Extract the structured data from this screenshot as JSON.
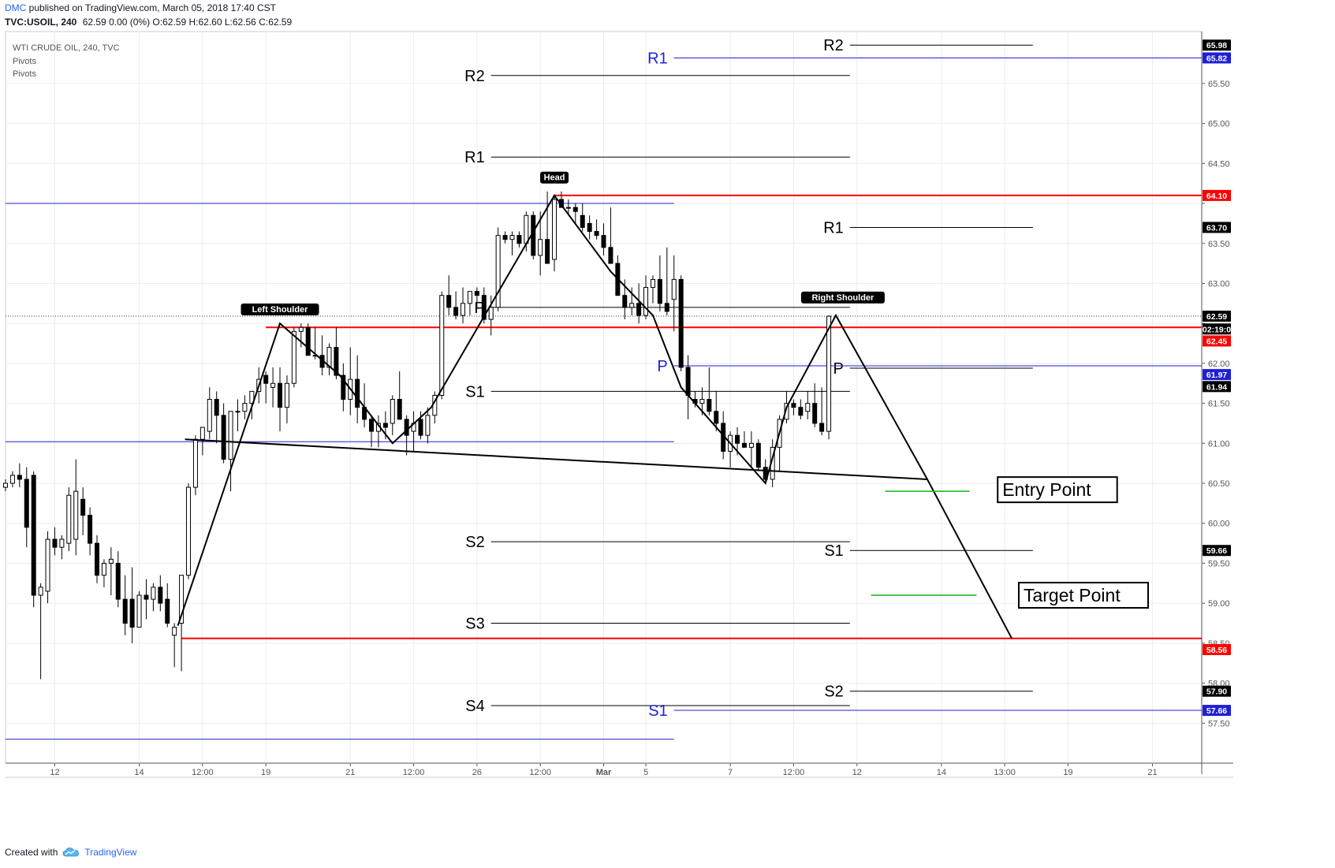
{
  "header": {
    "author": "DMC",
    "published": "published on TradingView.com, March 05, 2018 17:40 CST",
    "symbol_line": "TVC:USOIL, 240",
    "ohlc_line": "62.59 0.00 (0%) O:62.59 H:62.60 L:62.56 C:62.59"
  },
  "footer": {
    "created_with": "Created with",
    "brand": "TradingView",
    "brand_icon": "tradingview-cloud-logo"
  },
  "colors": {
    "grid": "#e9eef3",
    "candle_up": "#ffffff",
    "candle_down": "#000000",
    "pivot_black": "#000000",
    "pivot_blue": "#1f1fd6",
    "level_red": "#ff0000",
    "entry_green": "#17b217",
    "badge_bg": "#000000"
  },
  "chart_data": {
    "type": "candlestick",
    "title": "WTI CRUDE OIL, 240, TVC",
    "indicators": [
      "Pivots",
      "Pivots"
    ],
    "ylim": [
      57.0,
      66.15
    ],
    "y_ticks": [
      57.5,
      58.0,
      58.5,
      59.0,
      59.5,
      60.0,
      60.5,
      61.0,
      61.5,
      62.0,
      62.5,
      63.0,
      63.5,
      64.0,
      64.5,
      65.0,
      65.5
    ],
    "y_tick_labels": [
      "57.50",
      "58.00",
      "58.50",
      "59.00",
      "59.50",
      "60.00",
      "60.50",
      "61.00",
      "61.50",
      "62.00",
      "",
      "63.00",
      "63.50",
      "",
      "64.50",
      "65.00",
      "65.50"
    ],
    "x_axis": {
      "labels": [
        "12",
        "14",
        "12:00",
        "19",
        "21",
        "12:00",
        "26",
        "12:00",
        "Mar",
        "5",
        "7",
        "12:00",
        "12",
        "14",
        "13:00",
        "19",
        "21"
      ],
      "label_positions": [
        0,
        12,
        21,
        30,
        42,
        51,
        60,
        69,
        78,
        84,
        96,
        105,
        114,
        126,
        135,
        144,
        156
      ],
      "bold_labels": [
        "Mar"
      ]
    },
    "x_bar_range": [
      -7,
      163
    ],
    "candles": [
      [
        -7,
        60.45,
        60.55,
        60.4,
        60.5
      ],
      [
        -6,
        60.5,
        60.65,
        60.45,
        60.6
      ],
      [
        -5,
        60.6,
        60.75,
        60.45,
        60.55
      ],
      [
        -4,
        60.55,
        60.7,
        59.7,
        59.95
      ],
      [
        -3,
        60.6,
        60.65,
        58.95,
        59.1
      ],
      [
        -2,
        59.1,
        59.25,
        58.05,
        59.2
      ],
      [
        -1,
        59.15,
        59.9,
        59.0,
        59.8
      ],
      [
        0,
        59.8,
        59.95,
        59.6,
        59.7
      ],
      [
        1,
        59.7,
        59.85,
        59.55,
        59.8
      ],
      [
        2,
        59.75,
        60.45,
        59.65,
        60.35
      ],
      [
        3,
        59.8,
        60.8,
        59.6,
        60.4
      ],
      [
        4,
        60.3,
        60.45,
        59.85,
        60.1
      ],
      [
        5,
        60.1,
        60.2,
        59.6,
        59.75
      ],
      [
        6,
        59.75,
        59.85,
        59.25,
        59.35
      ],
      [
        7,
        59.35,
        59.55,
        59.2,
        59.5
      ],
      [
        8,
        59.5,
        59.7,
        59.1,
        59.55
      ],
      [
        9,
        59.5,
        59.65,
        58.95,
        59.05
      ],
      [
        10,
        59.05,
        59.35,
        58.6,
        58.75
      ],
      [
        11,
        59.05,
        59.45,
        58.5,
        58.7
      ],
      [
        12,
        58.7,
        59.15,
        58.7,
        59.1
      ],
      [
        13,
        59.1,
        59.3,
        58.8,
        59.05
      ],
      [
        14,
        59.05,
        59.25,
        58.9,
        59.2
      ],
      [
        15,
        59.2,
        59.35,
        58.9,
        59.0
      ],
      [
        16,
        59.05,
        59.25,
        58.7,
        58.75
      ],
      [
        17,
        58.6,
        58.75,
        58.2,
        58.7
      ],
      [
        18,
        58.75,
        59.35,
        58.15,
        59.35
      ],
      [
        19,
        59.35,
        60.5,
        59.3,
        60.45
      ],
      [
        20,
        60.45,
        61.1,
        60.35,
        61.05
      ],
      [
        21,
        61.05,
        61.2,
        60.85,
        61.2
      ],
      [
        22,
        61.15,
        61.7,
        61.05,
        61.55
      ],
      [
        23,
        61.55,
        61.65,
        61.0,
        61.35
      ],
      [
        24,
        61.35,
        61.5,
        60.75,
        60.8
      ],
      [
        25,
        60.8,
        61.35,
        60.4,
        61.4
      ],
      [
        26,
        61.4,
        61.55,
        61.15,
        61.4
      ],
      [
        27,
        61.4,
        61.6,
        61.3,
        61.5
      ],
      [
        28,
        61.5,
        61.65,
        61.3,
        61.65
      ],
      [
        29,
        61.65,
        61.95,
        61.5,
        61.8
      ],
      [
        30,
        61.85,
        61.9,
        61.5,
        61.75
      ],
      [
        31,
        61.7,
        61.95,
        61.45,
        61.75
      ],
      [
        32,
        61.75,
        61.95,
        61.15,
        61.45
      ],
      [
        33,
        61.45,
        61.85,
        61.25,
        61.75
      ],
      [
        34,
        61.75,
        62.45,
        61.7,
        62.4
      ],
      [
        35,
        62.4,
        62.5,
        62.2,
        62.45
      ],
      [
        36,
        62.45,
        62.5,
        62.1,
        62.1
      ],
      [
        37,
        62.1,
        62.45,
        62.05,
        62.1
      ],
      [
        38,
        62.1,
        62.35,
        61.85,
        61.95
      ],
      [
        39,
        61.95,
        62.25,
        61.85,
        62.2
      ],
      [
        40,
        62.2,
        62.45,
        61.8,
        61.85
      ],
      [
        41,
        61.85,
        62.0,
        61.4,
        61.55
      ],
      [
        42,
        61.55,
        62.2,
        61.35,
        61.8
      ],
      [
        43,
        61.8,
        62.1,
        61.25,
        61.45
      ],
      [
        44,
        61.45,
        61.75,
        61.2,
        61.3
      ],
      [
        45,
        61.3,
        61.35,
        60.95,
        61.15
      ],
      [
        46,
        61.15,
        61.35,
        60.95,
        61.25
      ],
      [
        47,
        61.25,
        61.4,
        61.05,
        61.2
      ],
      [
        48,
        61.25,
        61.6,
        61.1,
        61.55
      ],
      [
        49,
        61.55,
        61.9,
        61.3,
        61.3
      ],
      [
        50,
        61.3,
        61.35,
        60.85,
        61.1
      ],
      [
        51,
        61.15,
        61.4,
        60.9,
        61.25
      ],
      [
        52,
        61.3,
        61.4,
        61.05,
        61.1
      ],
      [
        53,
        61.1,
        61.45,
        61.0,
        61.35
      ],
      [
        54,
        61.35,
        61.65,
        61.25,
        61.6
      ],
      [
        55,
        61.6,
        62.9,
        61.55,
        62.85
      ],
      [
        56,
        62.85,
        63.1,
        62.6,
        62.7
      ],
      [
        57,
        62.7,
        62.9,
        62.55,
        62.6
      ],
      [
        58,
        62.6,
        62.95,
        62.5,
        62.75
      ],
      [
        59,
        62.75,
        62.9,
        62.6,
        62.9
      ],
      [
        60,
        62.9,
        62.95,
        62.7,
        62.85
      ],
      [
        61,
        62.85,
        62.95,
        62.5,
        62.55
      ],
      [
        62,
        62.55,
        62.85,
        62.35,
        62.7
      ],
      [
        63,
        62.7,
        63.7,
        62.65,
        63.6
      ],
      [
        64,
        63.6,
        63.65,
        63.5,
        63.55
      ],
      [
        65,
        63.55,
        63.65,
        63.35,
        63.6
      ],
      [
        66,
        63.6,
        63.65,
        63.45,
        63.5
      ],
      [
        67,
        63.5,
        63.9,
        63.4,
        63.85
      ],
      [
        68,
        63.85,
        63.9,
        63.3,
        63.35
      ],
      [
        69,
        63.35,
        63.9,
        63.1,
        63.55
      ],
      [
        70,
        63.55,
        64.15,
        63.25,
        63.25
      ],
      [
        71,
        63.3,
        64.1,
        63.15,
        64.05
      ],
      [
        72,
        64.05,
        64.15,
        63.95,
        63.95
      ],
      [
        73,
        63.95,
        64.05,
        63.85,
        63.95
      ],
      [
        74,
        63.95,
        64.0,
        63.75,
        63.9
      ],
      [
        75,
        63.85,
        64.0,
        63.65,
        63.7
      ],
      [
        76,
        63.75,
        63.85,
        63.55,
        63.65
      ],
      [
        77,
        63.65,
        63.8,
        63.55,
        63.6
      ],
      [
        78,
        63.6,
        63.75,
        63.35,
        63.45
      ],
      [
        79,
        63.45,
        63.95,
        63.25,
        63.25
      ],
      [
        80,
        63.25,
        63.35,
        62.85,
        62.85
      ],
      [
        81,
        62.85,
        63.05,
        62.55,
        62.7
      ],
      [
        82,
        62.7,
        62.95,
        62.6,
        62.75
      ],
      [
        83,
        62.75,
        63.0,
        62.5,
        62.6
      ],
      [
        84,
        62.6,
        63.1,
        62.55,
        62.95
      ],
      [
        85,
        62.95,
        63.1,
        62.75,
        63.05
      ],
      [
        86,
        63.05,
        63.35,
        62.65,
        62.75
      ],
      [
        87,
        62.75,
        63.45,
        62.6,
        62.65
      ],
      [
        88,
        62.8,
        63.35,
        62.4,
        63.05
      ],
      [
        89,
        63.05,
        63.1,
        61.9,
        61.95
      ],
      [
        90,
        61.95,
        62.1,
        61.3,
        61.6
      ],
      [
        91,
        61.55,
        61.65,
        61.45,
        61.5
      ],
      [
        92,
        61.5,
        61.7,
        61.35,
        61.55
      ],
      [
        93,
        61.55,
        61.95,
        61.35,
        61.4
      ],
      [
        94,
        61.4,
        61.65,
        61.15,
        61.25
      ],
      [
        95,
        61.25,
        61.4,
        60.8,
        60.9
      ],
      [
        96,
        60.9,
        61.15,
        60.7,
        61.1
      ],
      [
        97,
        61.1,
        61.2,
        60.85,
        61.0
      ],
      [
        98,
        61.0,
        61.15,
        60.95,
        60.95
      ],
      [
        99,
        60.95,
        61.15,
        60.7,
        61.0
      ],
      [
        100,
        61.0,
        61.05,
        60.65,
        60.7
      ],
      [
        101,
        60.7,
        60.8,
        60.5,
        60.55
      ],
      [
        102,
        60.55,
        61.05,
        60.45,
        60.95
      ],
      [
        103,
        60.95,
        61.35,
        60.65,
        61.3
      ],
      [
        104,
        61.3,
        61.65,
        61.25,
        61.5
      ],
      [
        105,
        61.5,
        61.55,
        61.35,
        61.45
      ],
      [
        106,
        61.45,
        61.55,
        61.3,
        61.35
      ],
      [
        107,
        61.4,
        61.65,
        61.3,
        61.5
      ],
      [
        108,
        61.5,
        61.75,
        61.2,
        61.25
      ],
      [
        109,
        61.25,
        61.7,
        61.1,
        61.15
      ],
      [
        110,
        61.15,
        62.6,
        61.05,
        62.59
      ]
    ],
    "drawn_levels": [
      {
        "name": "head-level",
        "color": "red",
        "price": 64.1,
        "x_range": [
          71,
          163
        ]
      },
      {
        "name": "shoulder-level",
        "color": "red",
        "price": 62.45,
        "x_range": [
          30,
          163
        ]
      },
      {
        "name": "target-level",
        "color": "red",
        "price": 58.56,
        "x_range": [
          18,
          163
        ]
      }
    ],
    "neckline": {
      "from": [
        18.5,
        61.05
      ],
      "to": [
        124,
        60.55
      ]
    },
    "pattern_path": [
      [
        17.5,
        58.72
      ],
      [
        32,
        62.5
      ],
      [
        40.5,
        61.85
      ],
      [
        48,
        61.0
      ],
      [
        53.5,
        61.45
      ],
      [
        71,
        64.1
      ],
      [
        79,
        63.15
      ],
      [
        85,
        62.6
      ],
      [
        89,
        61.7
      ],
      [
        101,
        60.5
      ],
      [
        104,
        61.45
      ],
      [
        111,
        62.6
      ],
      [
        124,
        60.55
      ],
      [
        136,
        58.56
      ]
    ],
    "pivots_weekly": {
      "color": "black",
      "x_range": [
        62,
        113
      ],
      "levels": [
        {
          "label": "R2",
          "price": 65.6
        },
        {
          "label": "R1",
          "price": 64.58
        },
        {
          "label": "P",
          "price": 62.7
        },
        {
          "label": "S1",
          "price": 61.65
        },
        {
          "label": "S2",
          "price": 59.77
        },
        {
          "label": "S3",
          "price": 58.75
        },
        {
          "label": "S4",
          "price": 57.72
        }
      ]
    },
    "pivots_next": {
      "color": "black",
      "x_range": [
        113,
        139
      ],
      "levels": [
        {
          "label": "R2",
          "price": 65.98
        },
        {
          "label": "R1",
          "price": 63.7
        },
        {
          "label": "P",
          "price": 61.94
        },
        {
          "label": "S1",
          "price": 59.66
        },
        {
          "label": "S2",
          "price": 57.9
        }
      ]
    },
    "pivots_blue": {
      "color": "blue",
      "segments": [
        {
          "price": 64.0,
          "x_range": [
            -7,
            88
          ]
        },
        {
          "price": 61.02,
          "x_range": [
            -7,
            88
          ]
        },
        {
          "price": 57.3,
          "x_range": [
            -7,
            88
          ]
        },
        {
          "label": "R1",
          "price": 65.82,
          "x_range": [
            88,
            163
          ]
        },
        {
          "label": "P",
          "price": 61.97,
          "x_range": [
            88,
            163
          ]
        },
        {
          "label": "S1",
          "price": 57.66,
          "x_range": [
            88,
            163
          ]
        }
      ]
    },
    "last_price_line": 62.59,
    "annotations": [
      {
        "text": "Head",
        "x": 71,
        "price": 64.25,
        "type": "badge"
      },
      {
        "text": "Left Shoulder",
        "x": 32,
        "price": 62.6,
        "type": "badge"
      },
      {
        "text": "Right Shoulder",
        "x": 112,
        "price": 62.75,
        "type": "badge"
      },
      {
        "text": "Entry Point",
        "x": 134,
        "price": 60.42,
        "type": "box"
      },
      {
        "text": "Target Point",
        "x": 137,
        "price": 59.1,
        "type": "box"
      }
    ],
    "signal_lines": [
      {
        "name": "entry-line",
        "price": 60.4,
        "x_range": [
          118,
          130
        ]
      },
      {
        "name": "target-line",
        "price": 59.1,
        "x_range": [
          116,
          131
        ]
      }
    ],
    "price_labels": [
      {
        "text": "65.98",
        "price": 65.98,
        "bg": "#000000"
      },
      {
        "text": "65.82",
        "price": 65.82,
        "bg": "#1f1fd6"
      },
      {
        "text": "64.10",
        "price": 64.1,
        "bg": "#ff0000"
      },
      {
        "text": "63.70",
        "price": 63.7,
        "bg": "#000000"
      },
      {
        "text": "62.59",
        "price": 62.59,
        "bg": "#000000"
      },
      {
        "text": "02:19:0",
        "price": 62.43,
        "bg": "#000000"
      },
      {
        "text": "62.45",
        "price": 62.28,
        "bg": "#ff0000"
      },
      {
        "text": "61.97",
        "price": 61.86,
        "bg": "#1f1fd6"
      },
      {
        "text": "61.94",
        "price": 61.71,
        "bg": "#000000"
      },
      {
        "text": "59.66",
        "price": 59.66,
        "bg": "#000000"
      },
      {
        "text": "58.56",
        "price": 58.42,
        "bg": "#ff0000"
      },
      {
        "text": "57.90",
        "price": 57.9,
        "bg": "#000000"
      },
      {
        "text": "57.66",
        "price": 57.66,
        "bg": "#1f1fd6"
      }
    ]
  }
}
